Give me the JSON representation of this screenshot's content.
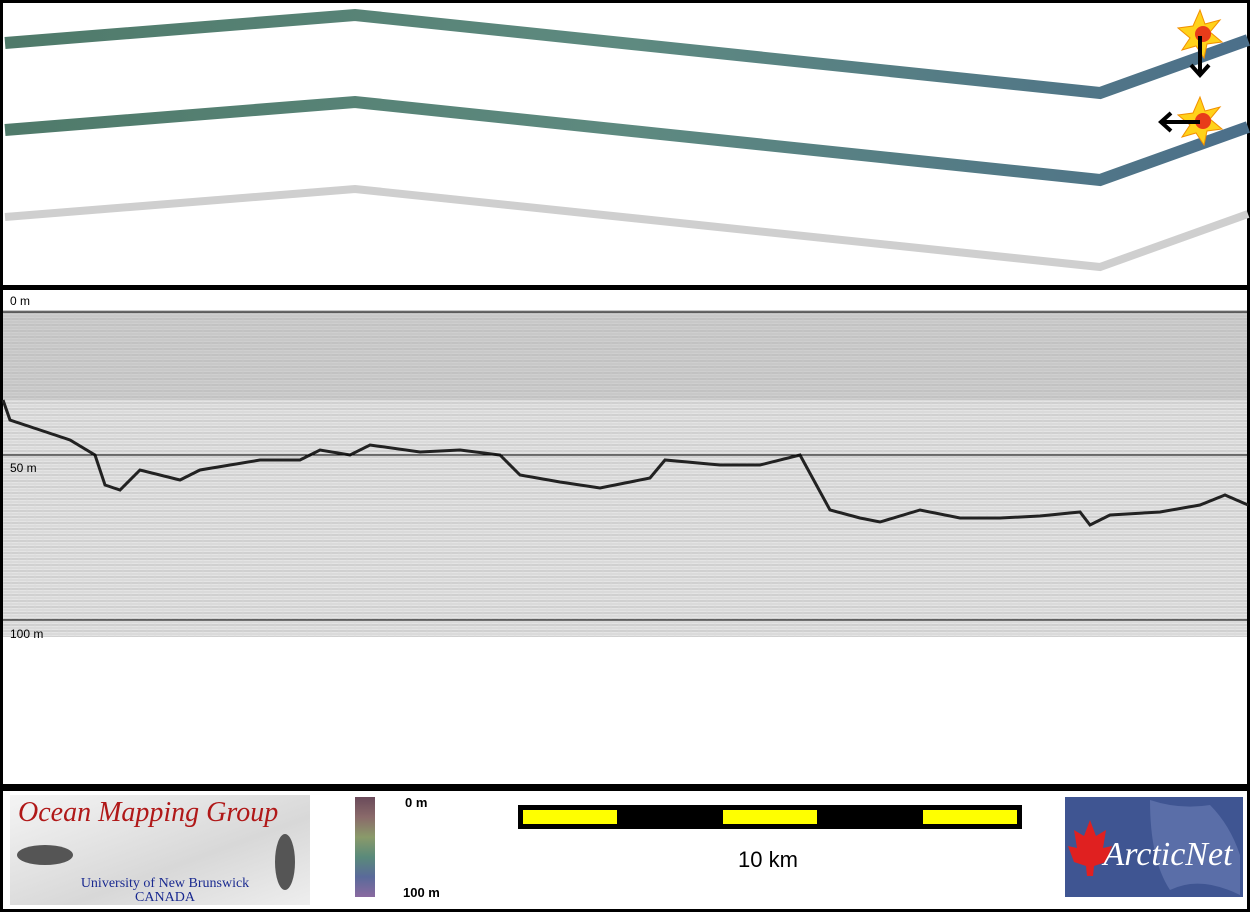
{
  "echogram": {
    "depth_labels": [
      "0 m",
      "50 m",
      "100 m"
    ]
  },
  "footer": {
    "ocean_mapping_logo": {
      "title": "Ocean Mapping Group",
      "university": "University of New Brunswick",
      "country": "CANADA"
    },
    "color_scale": {
      "top_label": "0 m",
      "bottom_label": "100 m"
    },
    "scale_bar": {
      "label": "10 km"
    },
    "arcticnet_logo": {
      "text": "ArcticNet"
    }
  }
}
